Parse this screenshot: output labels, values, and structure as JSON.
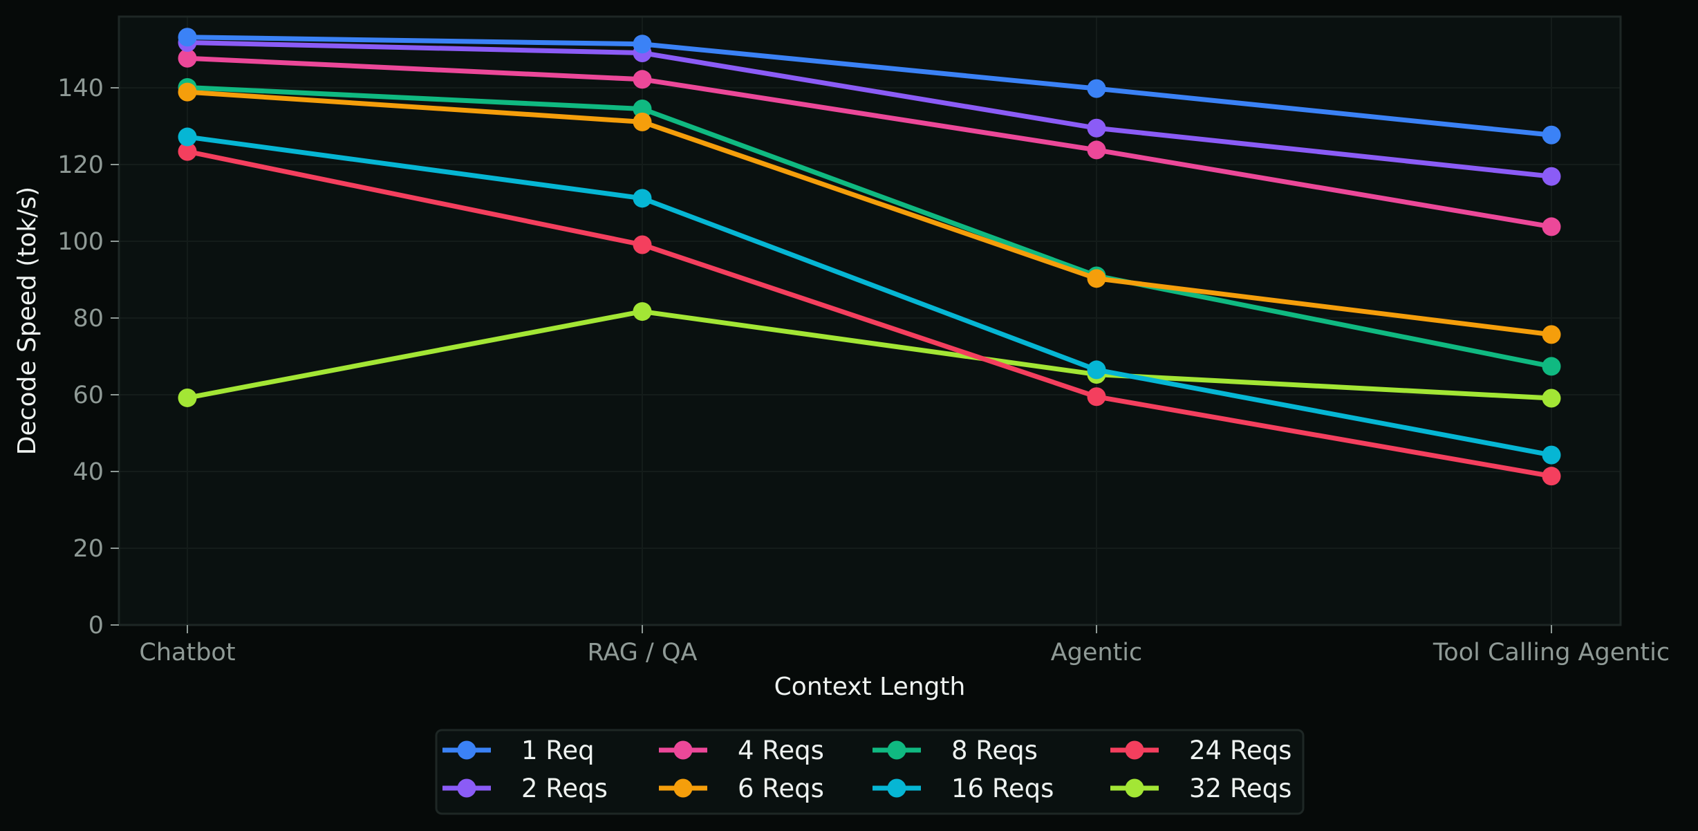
{
  "chart_data": {
    "type": "line",
    "title": "",
    "xlabel": "Context Length",
    "ylabel": "Decode Speed (tok/s)",
    "categories": [
      "Chatbot",
      "RAG / QA",
      "Agentic",
      "Tool Calling Agentic"
    ],
    "ylim": [
      0,
      158
    ],
    "yticks": [
      0,
      20,
      40,
      60,
      80,
      100,
      120,
      140
    ],
    "grid": true,
    "legend_position": "bottom-center",
    "legend_columns": 4,
    "series": [
      {
        "name": "1 Req",
        "color": "#3b82f6",
        "values": [
          153.2,
          151.4,
          139.8,
          127.7
        ]
      },
      {
        "name": "2 Reqs",
        "color": "#8b5cf6",
        "values": [
          151.8,
          149.1,
          129.5,
          116.9
        ]
      },
      {
        "name": "4 Reqs",
        "color": "#ec4899",
        "values": [
          147.7,
          142.2,
          123.8,
          103.8
        ]
      },
      {
        "name": "6 Reqs",
        "color": "#f59e0b",
        "values": [
          138.9,
          131.1,
          90.3,
          75.7
        ]
      },
      {
        "name": "8 Reqs",
        "color": "#10b981",
        "values": [
          140.1,
          134.5,
          91.0,
          67.4
        ]
      },
      {
        "name": "16 Reqs",
        "color": "#06b6d4",
        "values": [
          127.2,
          111.2,
          66.5,
          44.3
        ]
      },
      {
        "name": "24 Reqs",
        "color": "#f43f5e",
        "values": [
          123.4,
          99.1,
          59.5,
          38.8
        ]
      },
      {
        "name": "32 Reqs",
        "color": "#a3e635",
        "values": [
          59.2,
          81.7,
          65.3,
          59.1
        ]
      }
    ]
  },
  "colors": {
    "page_background": "#060a09",
    "plot_background": "#0a1110",
    "frame": "#1e2725",
    "grid": "#141c1a",
    "tick_text": "#8f9a96",
    "title_text": "#eef2f0"
  },
  "legend": {
    "items": [
      {
        "label": "1 Req",
        "color": "#3b82f6"
      },
      {
        "label": "2 Reqs",
        "color": "#8b5cf6"
      },
      {
        "label": "4 Reqs",
        "color": "#ec4899"
      },
      {
        "label": "6 Reqs",
        "color": "#f59e0b"
      },
      {
        "label": "8 Reqs",
        "color": "#10b981"
      },
      {
        "label": "16 Reqs",
        "color": "#06b6d4"
      },
      {
        "label": "24 Reqs",
        "color": "#f43f5e"
      },
      {
        "label": "32 Reqs",
        "color": "#a3e635"
      }
    ]
  }
}
